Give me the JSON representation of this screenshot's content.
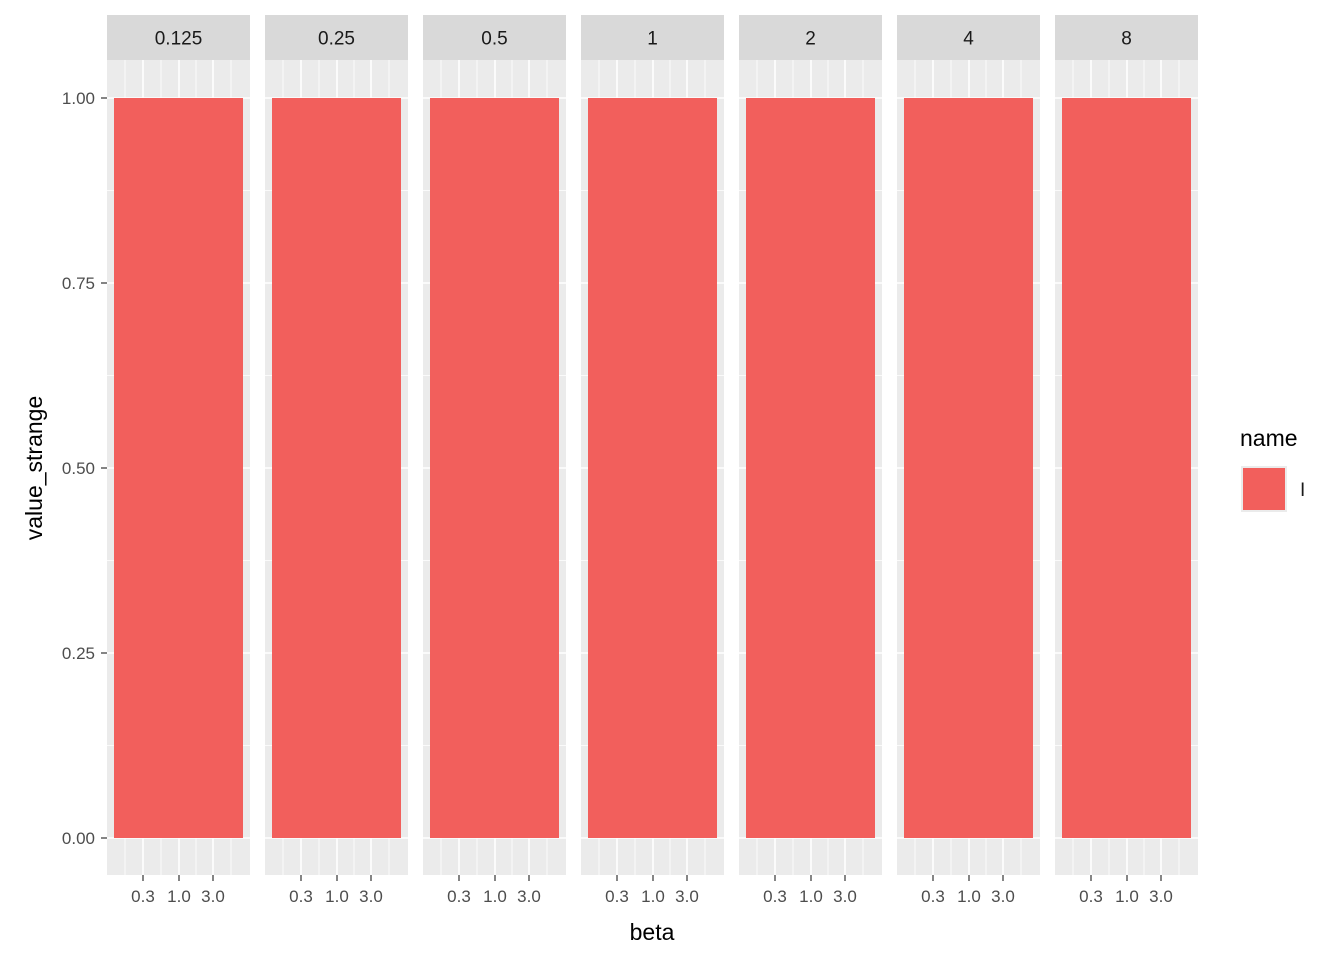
{
  "chart_data": {
    "type": "bar",
    "facet_labels": [
      "0.125",
      "0.25",
      "0.5",
      "1",
      "2",
      "4",
      "8"
    ],
    "x_tick_labels": [
      "0.3",
      "1.0",
      "3.0"
    ],
    "x_scale": "log",
    "xlabel": "beta",
    "ylabel": "value_strange",
    "ylim": [
      0,
      1
    ],
    "y_ticks": [
      0.0,
      0.25,
      0.5,
      0.75,
      1.0
    ],
    "y_tick_labels": [
      "0.00",
      "0.25",
      "0.50",
      "0.75",
      "1.00"
    ],
    "grid": true,
    "legend": {
      "title": "name",
      "position": "right",
      "entries": [
        {
          "label": "I",
          "color": "#f25f5c"
        }
      ]
    },
    "series": [
      {
        "name": "I",
        "color": "#f25f5c",
        "values": [
          1,
          1,
          1,
          1,
          1,
          1,
          1
        ]
      }
    ],
    "panel_background": "#ebebeb",
    "strip_background": "#d9d9d9"
  }
}
